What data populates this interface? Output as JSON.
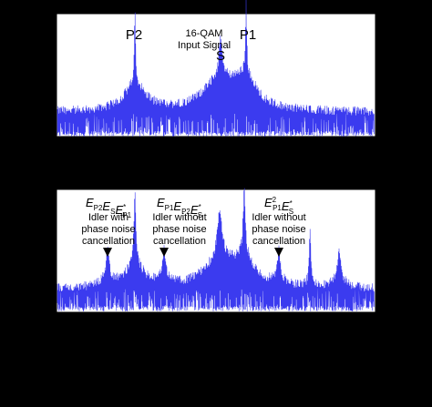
{
  "panels": [
    {
      "labels": [
        {
          "text": "P2"
        },
        {
          "lines": [
            "16-QAM",
            "Input Signal"
          ]
        },
        {
          "text": "S"
        },
        {
          "text": "P1"
        }
      ]
    },
    {
      "labels": [
        {
          "math": [
            [
              "E",
              "P2"
            ],
            [
              "E",
              "S"
            ],
            [
              "E",
              "P1",
              "*"
            ]
          ],
          "lines": [
            "Idler with",
            "phase noise",
            "cancellation"
          ]
        },
        {
          "math": [
            [
              "E",
              "P1"
            ],
            [
              "E",
              "P2"
            ],
            [
              "E",
              "S",
              "*"
            ]
          ],
          "lines": [
            "Idler without",
            "phase noise",
            "cancellation"
          ]
        },
        {
          "math": [
            [
              "E",
              "P1",
              "2"
            ],
            [
              "E",
              "S",
              "*"
            ]
          ],
          "lines": [
            "Idler without",
            "phase noise",
            "cancellation"
          ]
        }
      ]
    }
  ]
}
